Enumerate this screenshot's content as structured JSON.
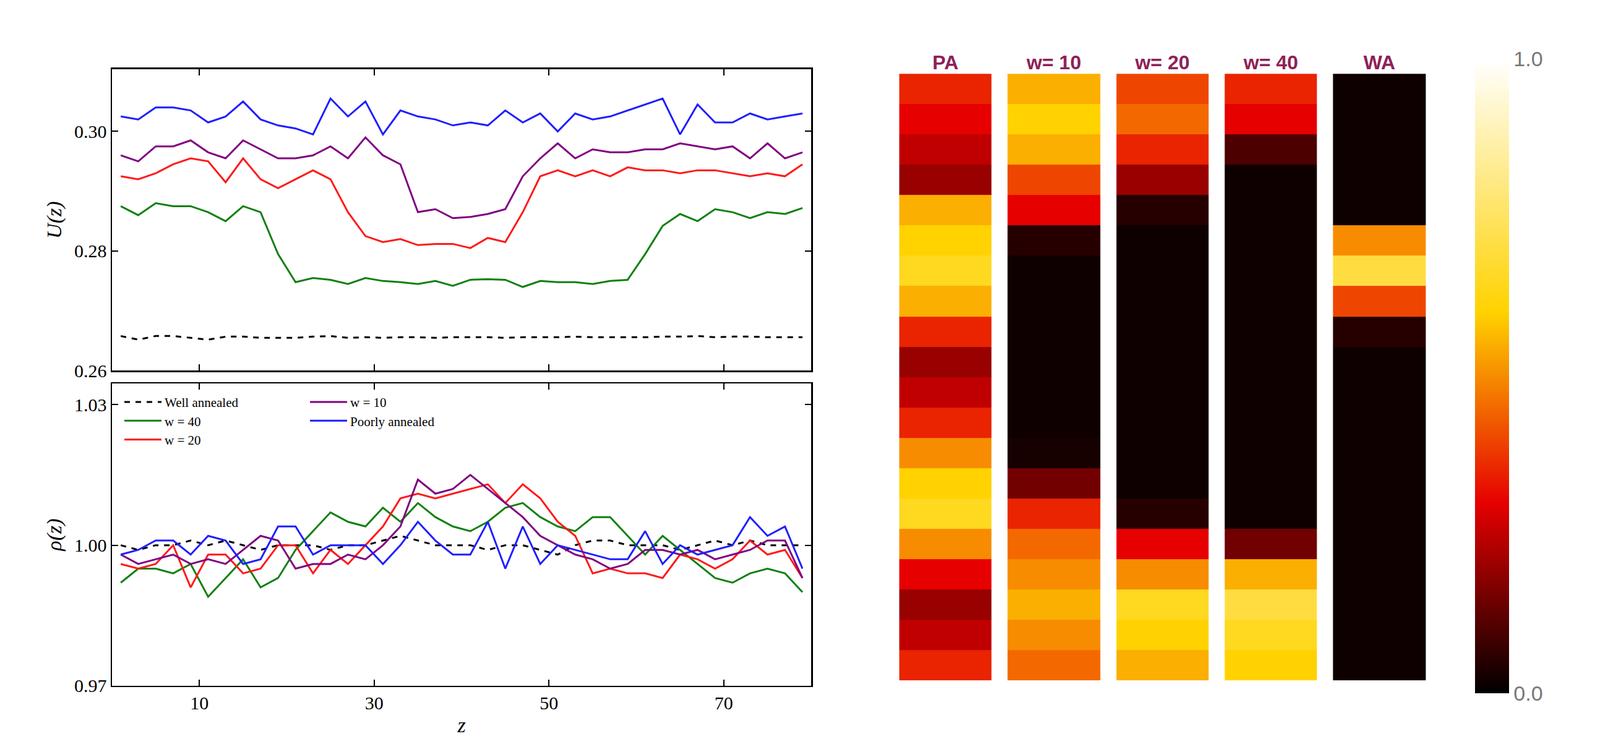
{
  "chart_data": [
    {
      "type": "line",
      "ylabel": "U(z)",
      "tick_labels": "y",
      "x": [
        1,
        3,
        5,
        7,
        9,
        11,
        13,
        15,
        17,
        19,
        21,
        23,
        25,
        27,
        29,
        31,
        33,
        35,
        37,
        39,
        41,
        43,
        45,
        47,
        49,
        51,
        53,
        55,
        57,
        59,
        61,
        63,
        65,
        67,
        69,
        71,
        73,
        75,
        77,
        79
      ],
      "xlim": [
        0,
        80
      ],
      "xticks": [
        10,
        30,
        50,
        70
      ],
      "ylim": [
        0.26,
        0.3104
      ],
      "yticks": [
        0.26,
        0.28,
        {
          "value": 0.3,
          "label": "0.30"
        }
      ],
      "series": [
        {
          "name": "Well annealed",
          "color": "#000000",
          "line_style": "dashed",
          "values": [
            0.2658,
            0.2652,
            0.2658,
            0.2658,
            0.2655,
            0.2652,
            0.2657,
            0.2657,
            0.2655,
            0.2655,
            0.2655,
            0.2657,
            0.2658,
            0.2655,
            0.2656,
            0.2655,
            0.2656,
            0.2656,
            0.2655,
            0.2656,
            0.2656,
            0.2656,
            0.2655,
            0.2656,
            0.2656,
            0.2656,
            0.2657,
            0.2656,
            0.2656,
            0.2656,
            0.2656,
            0.2657,
            0.2657,
            0.2658,
            0.2656,
            0.2657,
            0.2657,
            0.2656,
            0.2656,
            0.2656
          ]
        },
        {
          "name": "w = 40",
          "color": "#108010",
          "line_style": "solid",
          "values": [
            0.2875,
            0.286,
            0.288,
            0.2875,
            0.2875,
            0.2865,
            0.285,
            0.2875,
            0.2865,
            0.2795,
            0.2748,
            0.2755,
            0.2752,
            0.2745,
            0.2755,
            0.275,
            0.2748,
            0.2745,
            0.275,
            0.2742,
            0.2752,
            0.2753,
            0.2752,
            0.274,
            0.275,
            0.2748,
            0.2748,
            0.2745,
            0.275,
            0.2752,
            0.2795,
            0.2842,
            0.2862,
            0.285,
            0.287,
            0.2865,
            0.2855,
            0.2865,
            0.2862,
            0.2872
          ]
        },
        {
          "name": "w = 20",
          "color": "#ff1a1a",
          "line_style": "solid",
          "values": [
            0.2925,
            0.292,
            0.293,
            0.2945,
            0.2955,
            0.295,
            0.2915,
            0.2955,
            0.292,
            0.2905,
            0.292,
            0.2935,
            0.292,
            0.2865,
            0.2825,
            0.2815,
            0.282,
            0.281,
            0.2812,
            0.2812,
            0.2805,
            0.2822,
            0.2815,
            0.2865,
            0.2925,
            0.2935,
            0.2925,
            0.2935,
            0.2925,
            0.294,
            0.2935,
            0.2935,
            0.293,
            0.2935,
            0.2935,
            0.293,
            0.2925,
            0.293,
            0.2925,
            0.2945
          ]
        },
        {
          "name": "w = 10",
          "color": "#800080",
          "line_style": "solid",
          "values": [
            0.296,
            0.295,
            0.2975,
            0.2975,
            0.2985,
            0.2965,
            0.2955,
            0.2985,
            0.297,
            0.2955,
            0.2955,
            0.296,
            0.2975,
            0.2955,
            0.299,
            0.296,
            0.2945,
            0.2865,
            0.287,
            0.2855,
            0.2857,
            0.2862,
            0.287,
            0.2925,
            0.2955,
            0.298,
            0.2955,
            0.297,
            0.2965,
            0.2965,
            0.297,
            0.297,
            0.298,
            0.2975,
            0.297,
            0.2975,
            0.2955,
            0.298,
            0.2955,
            0.2965
          ]
        },
        {
          "name": "Poorly annealed",
          "color": "#1f1fff",
          "line_style": "solid",
          "values": [
            0.3025,
            0.302,
            0.304,
            0.304,
            0.3035,
            0.3015,
            0.3025,
            0.305,
            0.302,
            0.301,
            0.3005,
            0.2995,
            0.3055,
            0.3025,
            0.305,
            0.2995,
            0.3035,
            0.3025,
            0.302,
            0.301,
            0.3015,
            0.301,
            0.3035,
            0.3015,
            0.303,
            0.3,
            0.303,
            0.302,
            0.3025,
            0.3035,
            0.3045,
            0.3055,
            0.2995,
            0.3045,
            0.3015,
            0.3015,
            0.303,
            0.302,
            0.3025,
            0.303
          ]
        }
      ]
    },
    {
      "type": "line",
      "xlabel": "z",
      "ylabel": "ρ(z)",
      "legend": "upper left",
      "x": [
        1,
        3,
        5,
        7,
        9,
        11,
        13,
        15,
        17,
        19,
        21,
        23,
        25,
        27,
        29,
        31,
        33,
        35,
        37,
        39,
        41,
        43,
        45,
        47,
        49,
        51,
        53,
        55,
        57,
        59,
        61,
        63,
        65,
        67,
        69,
        71,
        73,
        75,
        77,
        79
      ],
      "xlim": [
        0,
        80
      ],
      "xticks": [
        10,
        30,
        50,
        70
      ],
      "ylim": [
        0.97,
        1.0345
      ],
      "yticks": [
        0.97,
        {
          "value": 1,
          "label": "1.00"
        },
        1.03
      ],
      "series": [
        {
          "name": "Well annealed",
          "color": "#000000",
          "line_style": "dashed",
          "values": [
            1.0,
            0.999,
            1.0,
            1.0,
            1.001,
            1.0,
            1.001,
            1.0,
            0.999,
            1.0,
            1.0,
            1.0,
            0.999,
            1.0,
            1.0,
            1.001,
            1.002,
            1.001,
            1.0,
            1.0,
            1.0,
            0.999,
            1.0,
            1.0,
            0.999,
            0.998,
            1.0,
            1.001,
            1.001,
            1.0,
            1.0,
            1.0,
            0.999,
            1.0,
            1.001,
            1.0,
            1.001,
            1.0,
            1.0,
            1.0
          ]
        },
        {
          "name": "w = 40",
          "color": "#108010",
          "line_style": "solid",
          "values": [
            0.992,
            0.995,
            0.995,
            0.994,
            0.996,
            0.989,
            0.993,
            0.997,
            0.991,
            0.993,
            0.999,
            1.003,
            1.007,
            1.005,
            1.004,
            1.008,
            1.005,
            1.009,
            1.006,
            1.004,
            1.003,
            1.005,
            1.008,
            1.009,
            1.006,
            1.004,
            1.003,
            1.006,
            1.006,
            1.002,
            0.998,
            1.002,
            0.999,
            0.996,
            0.993,
            0.992,
            0.994,
            0.995,
            0.994,
            0.99
          ]
        },
        {
          "name": "w = 20",
          "color": "#ff1a1a",
          "line_style": "solid",
          "values": [
            0.996,
            0.995,
            0.996,
            1.0,
            0.991,
            0.998,
            0.998,
            0.994,
            0.995,
            1.0,
            1.0,
            0.994,
            0.999,
            0.996,
            1.0,
            1.004,
            1.01,
            1.011,
            1.01,
            1.011,
            1.012,
            1.013,
            1.009,
            1.013,
            1.01,
            1.005,
            1.002,
            0.994,
            0.995,
            0.994,
            0.994,
            0.993,
            0.998,
            0.997,
            0.995,
            0.997,
            1.001,
            0.998,
            0.999,
            0.993
          ]
        },
        {
          "name": "w = 10",
          "color": "#800080",
          "line_style": "solid",
          "values": [
            0.998,
            0.996,
            0.997,
            0.998,
            0.996,
            0.997,
            0.996,
            0.999,
            1.002,
            1.001,
            0.995,
            0.996,
            0.996,
            0.998,
            0.997,
            1.0,
            1.004,
            1.014,
            1.011,
            1.012,
            1.015,
            1.012,
            1.009,
            1.006,
            1.002,
            1.0,
            0.998,
            0.997,
            0.995,
            0.996,
            0.999,
            0.999,
            0.998,
            0.999,
            0.997,
            0.998,
            0.999,
            1.001,
            1.001,
            0.993
          ]
        },
        {
          "name": "Poorly annealed",
          "color": "#1f1fff",
          "line_style": "solid",
          "values": [
            0.998,
            0.999,
            1.001,
            1.001,
            0.998,
            1.002,
            1.001,
            0.996,
            0.997,
            1.004,
            1.004,
            0.998,
            1.0,
            1.0,
            1.0,
            0.996,
            1.0,
            1.005,
            1.001,
            0.998,
            0.998,
            1.005,
            0.995,
            1.004,
            0.996,
            1.0,
            0.999,
            0.998,
            0.997,
            0.997,
            1.003,
            0.996,
            1.0,
            0.998,
            0.999,
            1.0,
            1.006,
            1.002,
            1.004,
            0.995
          ]
        }
      ]
    },
    {
      "type": "heatmap",
      "tick_labels": "x",
      "categories": [
        "PA",
        "w= 10",
        "w= 20",
        "w= 40",
        "WA"
      ],
      "mobility": [
        [
          0.35,
          0.3,
          0.25,
          0.2,
          0.55,
          0.6,
          0.65,
          0.55,
          0.35,
          0.2,
          0.25,
          0.35,
          0.5,
          0.6,
          0.65,
          0.5,
          0.3,
          0.2,
          0.25,
          0.35
        ],
        [
          0.55,
          0.6,
          0.55,
          0.4,
          0.3,
          0.05,
          0.02,
          0.02,
          0.02,
          0.02,
          0.02,
          0.02,
          0.03,
          0.15,
          0.35,
          0.45,
          0.5,
          0.55,
          0.5,
          0.45
        ],
        [
          0.4,
          0.45,
          0.35,
          0.2,
          0.05,
          0.02,
          0.02,
          0.02,
          0.02,
          0.02,
          0.02,
          0.02,
          0.02,
          0.02,
          0.05,
          0.3,
          0.5,
          0.65,
          0.6,
          0.55
        ],
        [
          0.35,
          0.3,
          0.1,
          0.02,
          0.02,
          0.02,
          0.02,
          0.02,
          0.02,
          0.02,
          0.02,
          0.02,
          0.02,
          0.02,
          0.02,
          0.15,
          0.55,
          0.7,
          0.65,
          0.6
        ],
        [
          0.02,
          0.02,
          0.02,
          0.02,
          0.02,
          0.5,
          0.7,
          0.4,
          0.05,
          0.02,
          0.02,
          0.02,
          0.02,
          0.02,
          0.02,
          0.02,
          0.02,
          0.02,
          0.02,
          0.02
        ]
      ],
      "colorbar": {
        "range": [
          0,
          1
        ],
        "ticks": [
          {
            "value": 0,
            "label": "0.0"
          },
          {
            "value": 1,
            "label": "1.0"
          }
        ]
      }
    }
  ]
}
